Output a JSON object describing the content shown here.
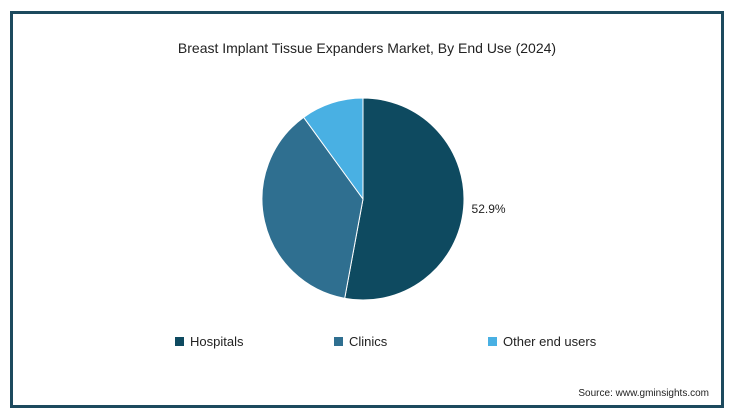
{
  "chart_data": {
    "type": "pie",
    "title": "Breast Implant Tissue Expanders Market, By End Use (2024)",
    "categories": [
      "Hospitals",
      "Clinics",
      "Other end users"
    ],
    "values": [
      52.9,
      37.1,
      10.0
    ],
    "data_labels": [
      "52.9%",
      "",
      ""
    ],
    "colors": [
      "#0e4a60",
      "#2f6f90",
      "#49b0e3"
    ],
    "legend_position": "bottom"
  },
  "source": "Source: www.gminsights.com"
}
